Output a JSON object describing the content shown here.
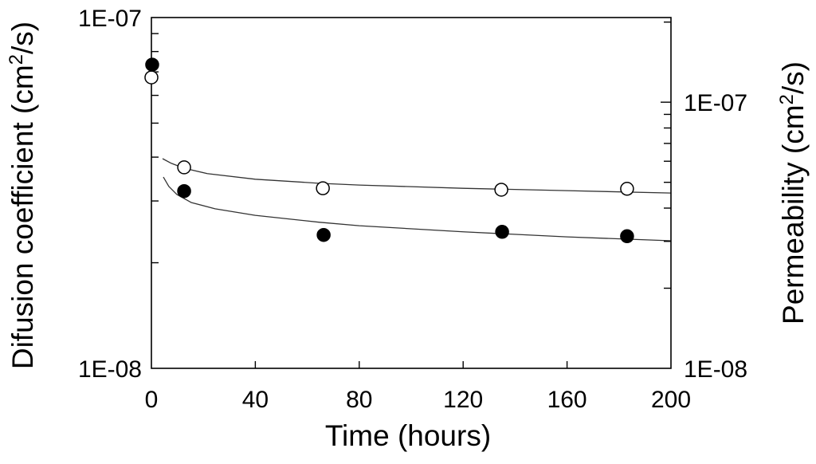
{
  "chart_data": {
    "type": "scatter",
    "xlabel": "Time (hours)",
    "ylabel_left": {
      "text": "Difusion coefficient (cm",
      "sup": "2",
      "tail": "/s)"
    },
    "ylabel_right": {
      "text": "Permeability (cm",
      "sup": "2",
      "tail": "/s)"
    },
    "xlim": [
      0,
      200
    ],
    "xticks": [
      0,
      40,
      80,
      120,
      160,
      200
    ],
    "xtick_labels": [
      "0",
      "40",
      "80",
      "120",
      "160",
      "200"
    ],
    "log_y": true,
    "grid": false,
    "ylim_left": [
      1e-08,
      1e-07
    ],
    "ylim_right": [
      1e-08,
      2.08e-07
    ],
    "yticks_left": [
      {
        "value": 1e-07,
        "label": "1E-07"
      },
      {
        "value": 1e-08,
        "label": "1E-08"
      }
    ],
    "yticks_right": [
      {
        "value": 1e-07,
        "label": "1E-07"
      },
      {
        "value": 1e-08,
        "label": "1E-08"
      }
    ],
    "series": [
      {
        "filled": false,
        "x": [
          0,
          12.6,
          66.0,
          134.7,
          183.1
        ],
        "y": [
          6.75e-08,
          3.74e-08,
          3.26e-08,
          3.23e-08,
          3.25e-08
        ]
      },
      {
        "filled": true,
        "x": [
          0.3,
          12.6,
          66.3,
          135.0,
          183.1
        ],
        "y": [
          7.34e-08,
          3.2e-08,
          2.4e-08,
          2.45e-08,
          2.38e-08
        ]
      }
    ],
    "fit_curves": [
      {
        "x": [
          4.3,
          7.7,
          12.6,
          21.5,
          40,
          64.4,
          80,
          120,
          160,
          200
        ],
        "y": [
          3.96e-08,
          3.84e-08,
          3.72e-08,
          3.59e-08,
          3.46e-08,
          3.37e-08,
          3.33e-08,
          3.26e-08,
          3.21e-08,
          3.16e-08
        ]
      },
      {
        "x": [
          4.6,
          6.7,
          9.8,
          15.3,
          24.5,
          40,
          64.4,
          80,
          120,
          160,
          200
        ],
        "y": [
          3.51e-08,
          3.3e-08,
          3.13e-08,
          2.97e-08,
          2.85e-08,
          2.73e-08,
          2.61e-08,
          2.55e-08,
          2.45e-08,
          2.37e-08,
          2.31e-08
        ]
      }
    ]
  },
  "colors": {
    "background": "#ffffff",
    "axis": "#000000",
    "curve": "#333333",
    "marker": "#000000",
    "open_marker_fill": "#ffffff"
  }
}
